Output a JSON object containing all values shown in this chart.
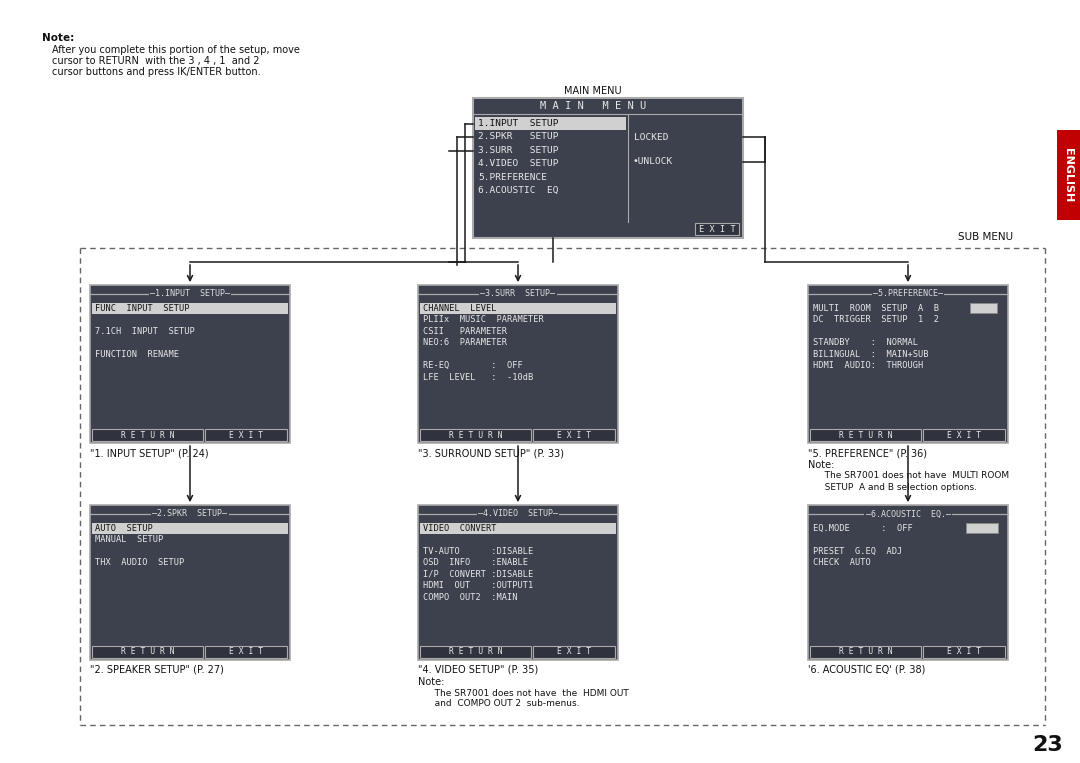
{
  "bg_color": "#ffffff",
  "dark_box_bg": "#3d414e",
  "dark_box_border": "#aaaaaa",
  "box_text_color": "#e8e8e8",
  "highlight_bg": "#d0d0d0",
  "highlight_text": "#111111",
  "arrow_color": "#1a1a1a",
  "dashed_line_color": "#666666",
  "main_menu_label": "MAIN MENU",
  "main_menu_title": "M A I N   M E N U",
  "main_menu_items": [
    "1.INPUT  SETUP",
    "2.SPKR   SETUP",
    "3.SURR   SETUP",
    "4.VIDEO  SETUP",
    "5.PREFERENCE",
    "6.ACOUSTIC  EQ"
  ],
  "main_menu_locked": "LOCKED",
  "main_menu_unlock": "•UNLOCK",
  "main_menu_exit": "E X I T",
  "sub_menu_label": "SUB MENU",
  "box1_title": "1.INPUT  SETUP",
  "box1_lines": [
    "FUNC  INPUT  SETUP",
    "",
    "7.1CH  INPUT  SETUP",
    "",
    "FUNCTION  RENAME"
  ],
  "box1_caption": "\"1. INPUT SETUP\" (P. 24)",
  "box2_title": "2.SPKR  SETUP",
  "box2_lines": [
    "AUTO  SETUP",
    "MANUAL  SETUP",
    "",
    "THX  AUDIO  SETUP"
  ],
  "box2_caption": "\"2. SPEAKER SETUP\" (P. 27)",
  "box3_title": "3.SURR  SETUP",
  "box3_lines": [
    "CHANNEL  LEVEL",
    "PLIIx  MUSIC  PARAMETER",
    "CSII   PARAMETER",
    "NEO:6  PARAMETER",
    "",
    "RE-EQ        :  OFF",
    "LFE  LEVEL   :  -10dB"
  ],
  "box3_caption": "\"3. SURROUND SETUP\" (P. 33)",
  "box4_title": "4.VIDEO  SETUP",
  "box4_lines": [
    "VIDEO  CONVERT",
    "",
    "TV-AUTO      :DISABLE",
    "OSD  INFO    :ENABLE",
    "I/P  CONVERT :DISABLE",
    "HDMI  OUT    :OUTPUT1",
    "COMPO  OUT2  :MAIN"
  ],
  "box4_caption": "\"4. VIDEO SETUP\" (P. 35)",
  "box4_note1": "Note:",
  "box4_note2": "   The SR7001 does not have  the  HDMI OUT",
  "box4_note3": "   and  COMPO OUT 2  sub-menus.",
  "box5_title": "5.PREFERENCE",
  "box5_lines": [
    "MULTI  ROOM  SETUP  A  B",
    "DC  TRIGGER  SETUP  1  2",
    "",
    "STANDBY    :  NORMAL",
    "BILINGUAL  :  MAIN+SUB",
    "HDMI  AUDIO:  THROUGH"
  ],
  "box5_caption": "\"5. PREFERENCE\" (P. 36)",
  "box5_note1": "Note:",
  "box5_note2": "   The SR7001 does not have  MULTI ROOM",
  "box5_note3": "   SETUP  A and B selection options.",
  "box6_title": "6.ACOUSTIC  EQ.",
  "box6_lines": [
    "EQ.MODE      :  OFF",
    "",
    "PRESET  G.EQ  ADJ",
    "CHECK  AUTO"
  ],
  "box6_caption": "'6. ACOUSTIC EQ' (P. 38)",
  "note_header": "Note:",
  "note_line1": "After you complete this portion of the setup, move",
  "note_line2": "cursor to RETURN  with the 3 , 4 , 1  and 2",
  "note_line3": "cursor buttons and press ⅠK/ENTER button.",
  "page_number": "23",
  "english_label": "ENGLISH"
}
